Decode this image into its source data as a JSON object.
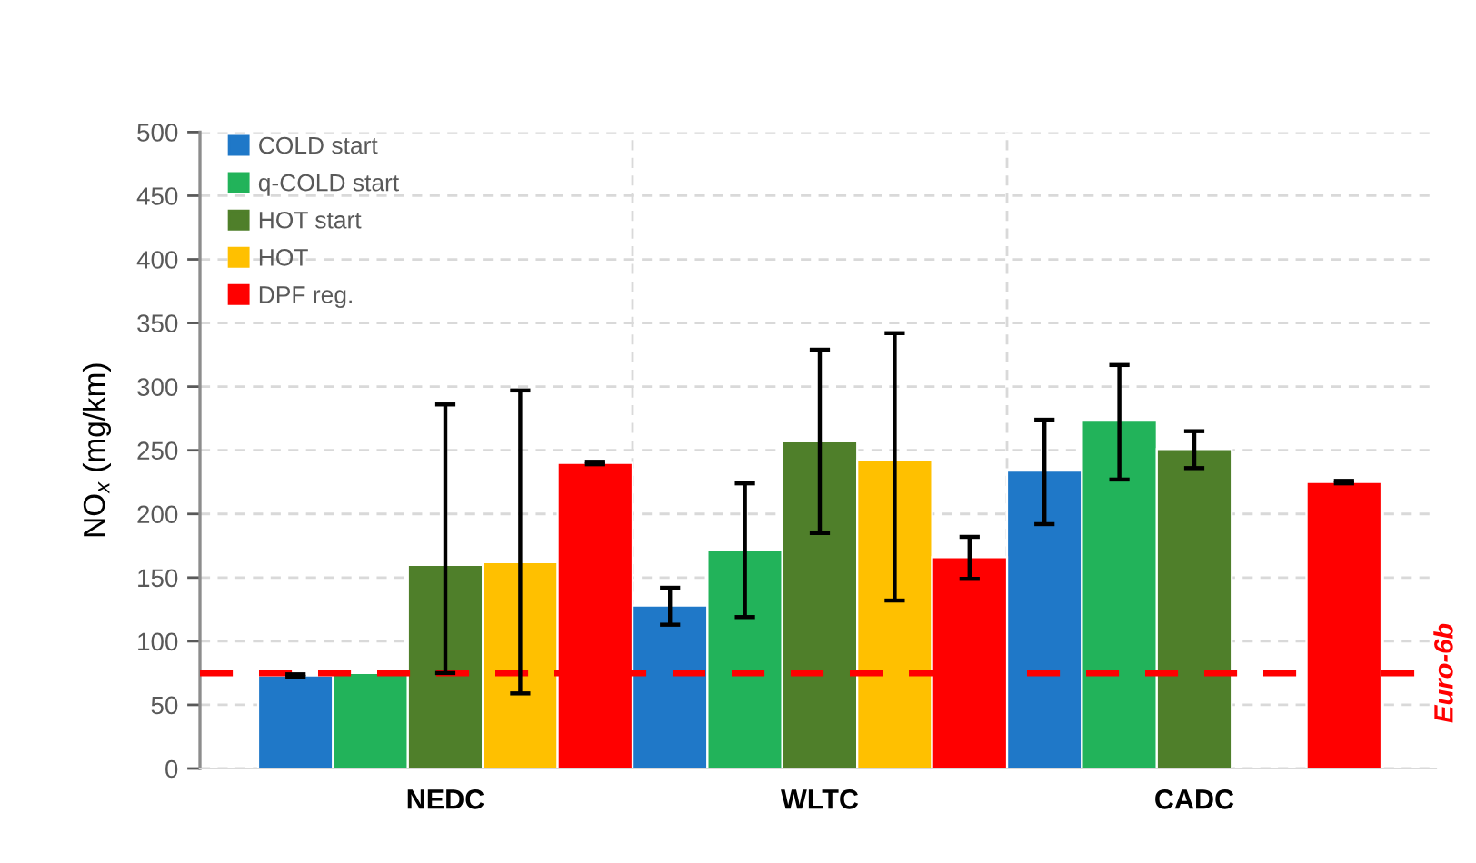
{
  "chart_data": {
    "type": "bar",
    "categories": [
      "NEDC",
      "WLTC",
      "CADC"
    ],
    "ylabel": "NO$_{x}$ (mg/km)",
    "ylim": [
      0,
      500
    ],
    "yticks": [
      0,
      50,
      100,
      150,
      200,
      250,
      300,
      350,
      400,
      450,
      500
    ],
    "series": [
      {
        "name": "COLD start",
        "color": "#1f78c8",
        "values": [
          73,
          128,
          234
        ],
        "errors": [
          1,
          [
            113,
            142
          ],
          [
            192,
            274
          ]
        ]
      },
      {
        "name": "q-COLD start",
        "color": "#22b35a",
        "values": [
          75,
          172,
          274
        ],
        "errors": [
          null,
          [
            119,
            224
          ],
          [
            227,
            317
          ]
        ]
      },
      {
        "name": "HOT start",
        "color": "#4f7f2a",
        "values": [
          160,
          257,
          251
        ],
        "errors": [
          [
            75,
            286
          ],
          [
            185,
            329
          ],
          [
            236,
            265
          ]
        ]
      },
      {
        "name": "HOT",
        "color": "#ffc000",
        "values": [
          162,
          242,
          null
        ],
        "errors": [
          [
            59,
            297
          ],
          [
            132,
            342
          ],
          null
        ]
      },
      {
        "name": "DPF reg.",
        "color": "#ff0000",
        "values": [
          240,
          166,
          225
        ],
        "errors": [
          1,
          [
            149,
            182
          ],
          1
        ]
      }
    ],
    "ref_lines": [
      {
        "axis": "y",
        "value": 75,
        "label": "Euro-6b",
        "color": "#ff0000",
        "line_style": "dashed"
      }
    ],
    "grid": true,
    "legend": "top left"
  }
}
